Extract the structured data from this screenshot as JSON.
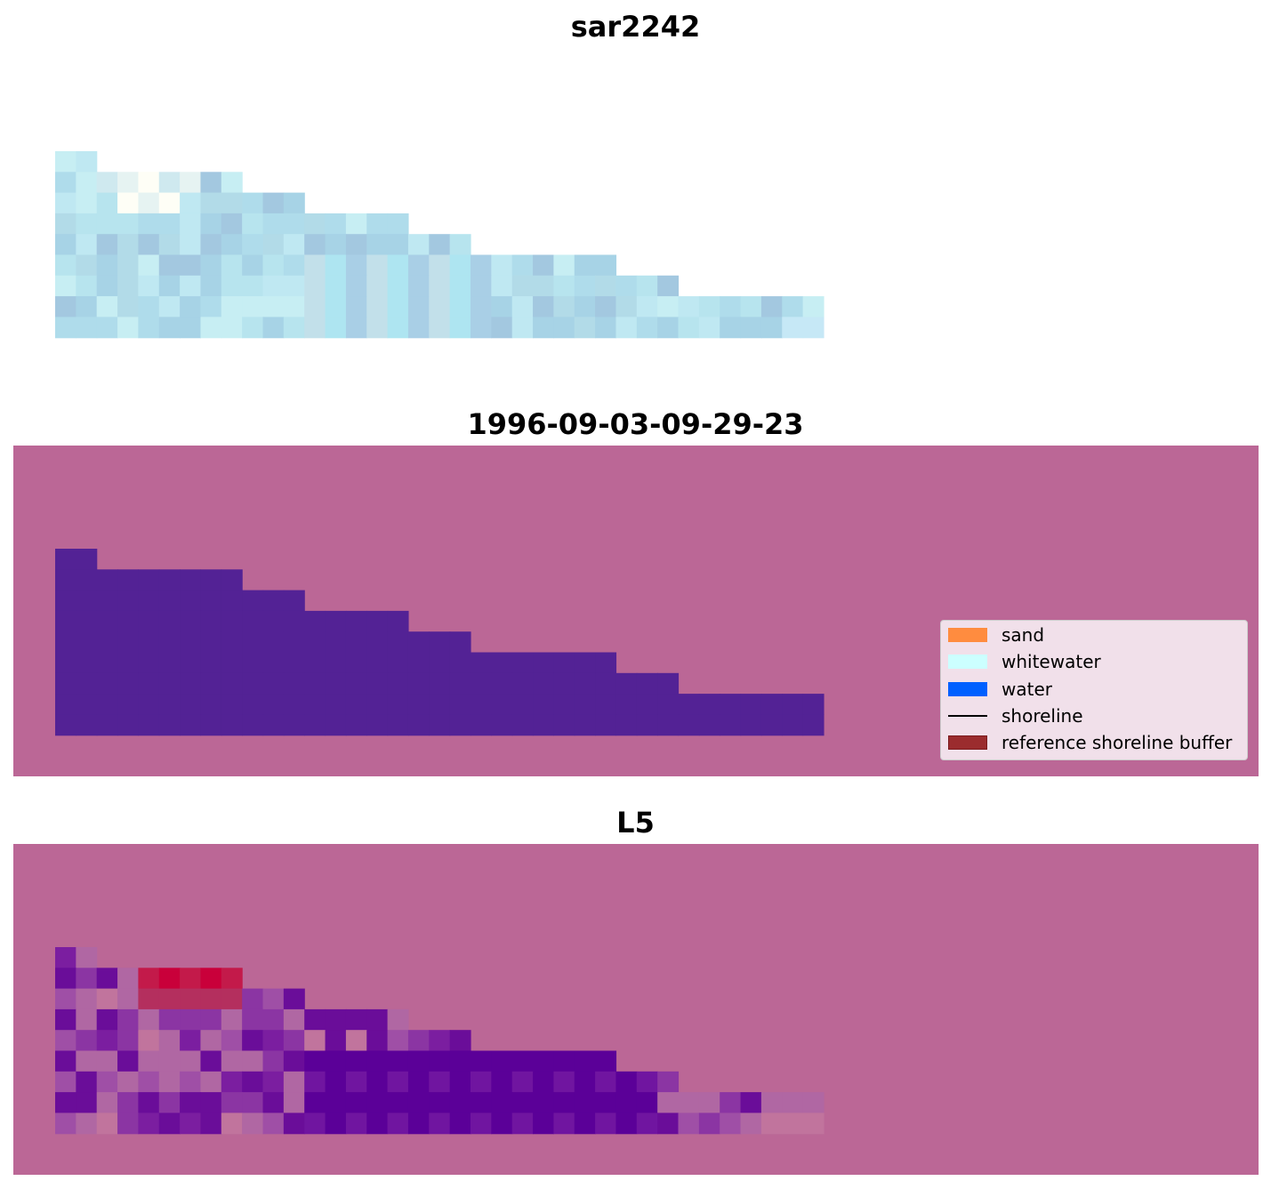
{
  "panels": [
    {
      "title": "sar2242",
      "kind": "rgb"
    },
    {
      "title": "1996-09-03-09-29-23",
      "kind": "classification"
    },
    {
      "title": "L5",
      "kind": "index"
    }
  ],
  "colors": {
    "nodata": "#bb6796",
    "classified_water": "#532295",
    "sand": "#ff8c3f",
    "whitewater": "#ccffff",
    "water": "#0060ff",
    "shoreline": "#000000",
    "reference_buffer": "#9b2c2e",
    "reference_buffer_edge": "#7a1a1c"
  },
  "legend": {
    "items": [
      {
        "label": "sand",
        "kind": "patch",
        "color": "#ff8c3f"
      },
      {
        "label": "whitewater",
        "kind": "patch",
        "color": "#ccffff"
      },
      {
        "label": "water",
        "kind": "patch",
        "color": "#0060ff"
      },
      {
        "label": "shoreline",
        "kind": "line",
        "color": "#000000"
      },
      {
        "label": "reference shoreline buffer",
        "kind": "patch",
        "color": "#9b2c2e"
      }
    ]
  },
  "footprint_row_end_cols": [
    2,
    9,
    12,
    17,
    20,
    27,
    30,
    37
  ],
  "rgb_palette": [
    "#c7eef3",
    "#bfe8f2",
    "#b7e4ee",
    "#afdceb",
    "#a7d3e6",
    "#a3c8e0",
    "#b2dbe8",
    "#cfe9ef",
    "#e6f3f2",
    "#fefef6",
    "#c2e0ea",
    "#aee5f1",
    "#a9cfe6",
    "#c6e8f6"
  ],
  "index_palette": [
    "#6a0d99",
    "#7b1ea0",
    "#8b35a3",
    "#9f4fa6",
    "#b067a3",
    "#c1749d",
    "#c31a4a",
    "#c9003a",
    "#b42f5e",
    "#5b0098",
    "#7015a0",
    "#9b3e9e"
  ]
}
